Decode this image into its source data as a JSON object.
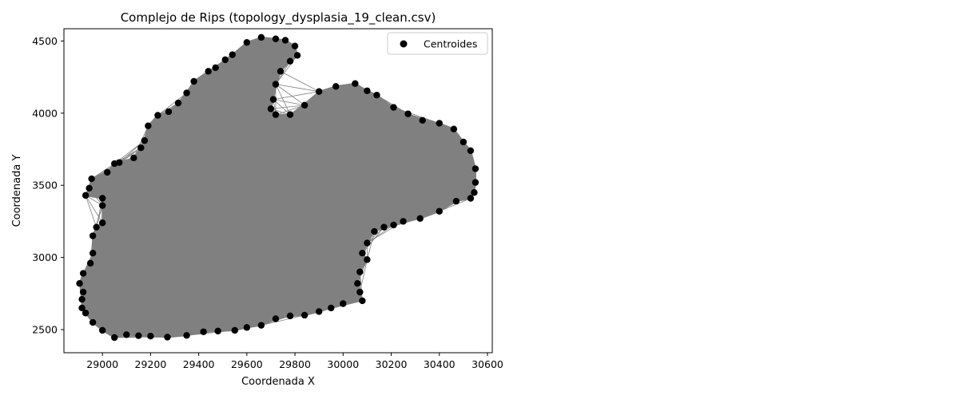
{
  "chart_data": {
    "type": "scatter",
    "title": "Complejo de Rips (topology_dysplasia_19_clean.csv)",
    "xlabel": "Coordenada X",
    "ylabel": "Coordenada Y",
    "xlim": [
      28840,
      30620
    ],
    "ylim": [
      2340,
      4585
    ],
    "x_ticks": [
      29000,
      29200,
      29400,
      29600,
      29800,
      30000,
      30200,
      30400,
      30600
    ],
    "y_ticks": [
      2500,
      3000,
      3500,
      4000,
      4500
    ],
    "grid": false,
    "legend_position": "top-right",
    "series": [
      {
        "name": "Centroides",
        "marker_color": "#000000",
        "edge_color": "#808080",
        "outline": [
          [
            29070,
            3658
          ],
          [
            29130,
            3690
          ],
          [
            29160,
            3760
          ],
          [
            29175,
            3810
          ],
          [
            29190,
            3912
          ],
          [
            29230,
            3985
          ],
          [
            29275,
            4010
          ],
          [
            29315,
            4070
          ],
          [
            29350,
            4140
          ],
          [
            29380,
            4220
          ],
          [
            29440,
            4290
          ],
          [
            29470,
            4315
          ],
          [
            29510,
            4370
          ],
          [
            29540,
            4405
          ],
          [
            29600,
            4490
          ],
          [
            29660,
            4525
          ],
          [
            29720,
            4515
          ],
          [
            29760,
            4505
          ],
          [
            29800,
            4465
          ],
          [
            29810,
            4400
          ],
          [
            29780,
            4360
          ],
          [
            29740,
            4290
          ],
          [
            29720,
            4200
          ],
          [
            29710,
            4095
          ],
          [
            29700,
            4030
          ],
          [
            29720,
            3990
          ],
          [
            29780,
            3990
          ],
          [
            29840,
            4055
          ],
          [
            29900,
            4150
          ],
          [
            29970,
            4185
          ],
          [
            30050,
            4205
          ],
          [
            30100,
            4155
          ],
          [
            30140,
            4125
          ],
          [
            30210,
            4040
          ],
          [
            30270,
            3995
          ],
          [
            30330,
            3950
          ],
          [
            30400,
            3930
          ],
          [
            30460,
            3890
          ],
          [
            30500,
            3800
          ],
          [
            30530,
            3740
          ],
          [
            30550,
            3615
          ],
          [
            30550,
            3520
          ],
          [
            30545,
            3450
          ],
          [
            30530,
            3410
          ],
          [
            30470,
            3390
          ],
          [
            30400,
            3320
          ],
          [
            30320,
            3270
          ],
          [
            30250,
            3250
          ],
          [
            30210,
            3225
          ],
          [
            30170,
            3210
          ],
          [
            30130,
            3180
          ],
          [
            30100,
            3100
          ],
          [
            30080,
            3030
          ],
          [
            30100,
            2985
          ],
          [
            30070,
            2900
          ],
          [
            30060,
            2820
          ],
          [
            30070,
            2760
          ],
          [
            30080,
            2700
          ],
          [
            30000,
            2680
          ],
          [
            29950,
            2650
          ],
          [
            29900,
            2625
          ],
          [
            29840,
            2600
          ],
          [
            29780,
            2595
          ],
          [
            29720,
            2575
          ],
          [
            29660,
            2530
          ],
          [
            29600,
            2515
          ],
          [
            29550,
            2495
          ],
          [
            29480,
            2490
          ],
          [
            29420,
            2485
          ],
          [
            29350,
            2460
          ],
          [
            29270,
            2448
          ],
          [
            29200,
            2455
          ],
          [
            29150,
            2458
          ],
          [
            29100,
            2465
          ],
          [
            29050,
            2445
          ],
          [
            29000,
            2495
          ],
          [
            28960,
            2550
          ],
          [
            28930,
            2615
          ],
          [
            28915,
            2650
          ],
          [
            28915,
            2710
          ],
          [
            28920,
            2760
          ],
          [
            28905,
            2820
          ],
          [
            28920,
            2890
          ],
          [
            28950,
            2960
          ],
          [
            28960,
            3030
          ],
          [
            28960,
            3150
          ],
          [
            28975,
            3210
          ],
          [
            29000,
            3240
          ],
          [
            29000,
            3360
          ],
          [
            29000,
            3410
          ],
          [
            28930,
            3430
          ],
          [
            28945,
            3480
          ],
          [
            28955,
            3545
          ],
          [
            29020,
            3590
          ],
          [
            29050,
            3650
          ]
        ]
      }
    ]
  }
}
